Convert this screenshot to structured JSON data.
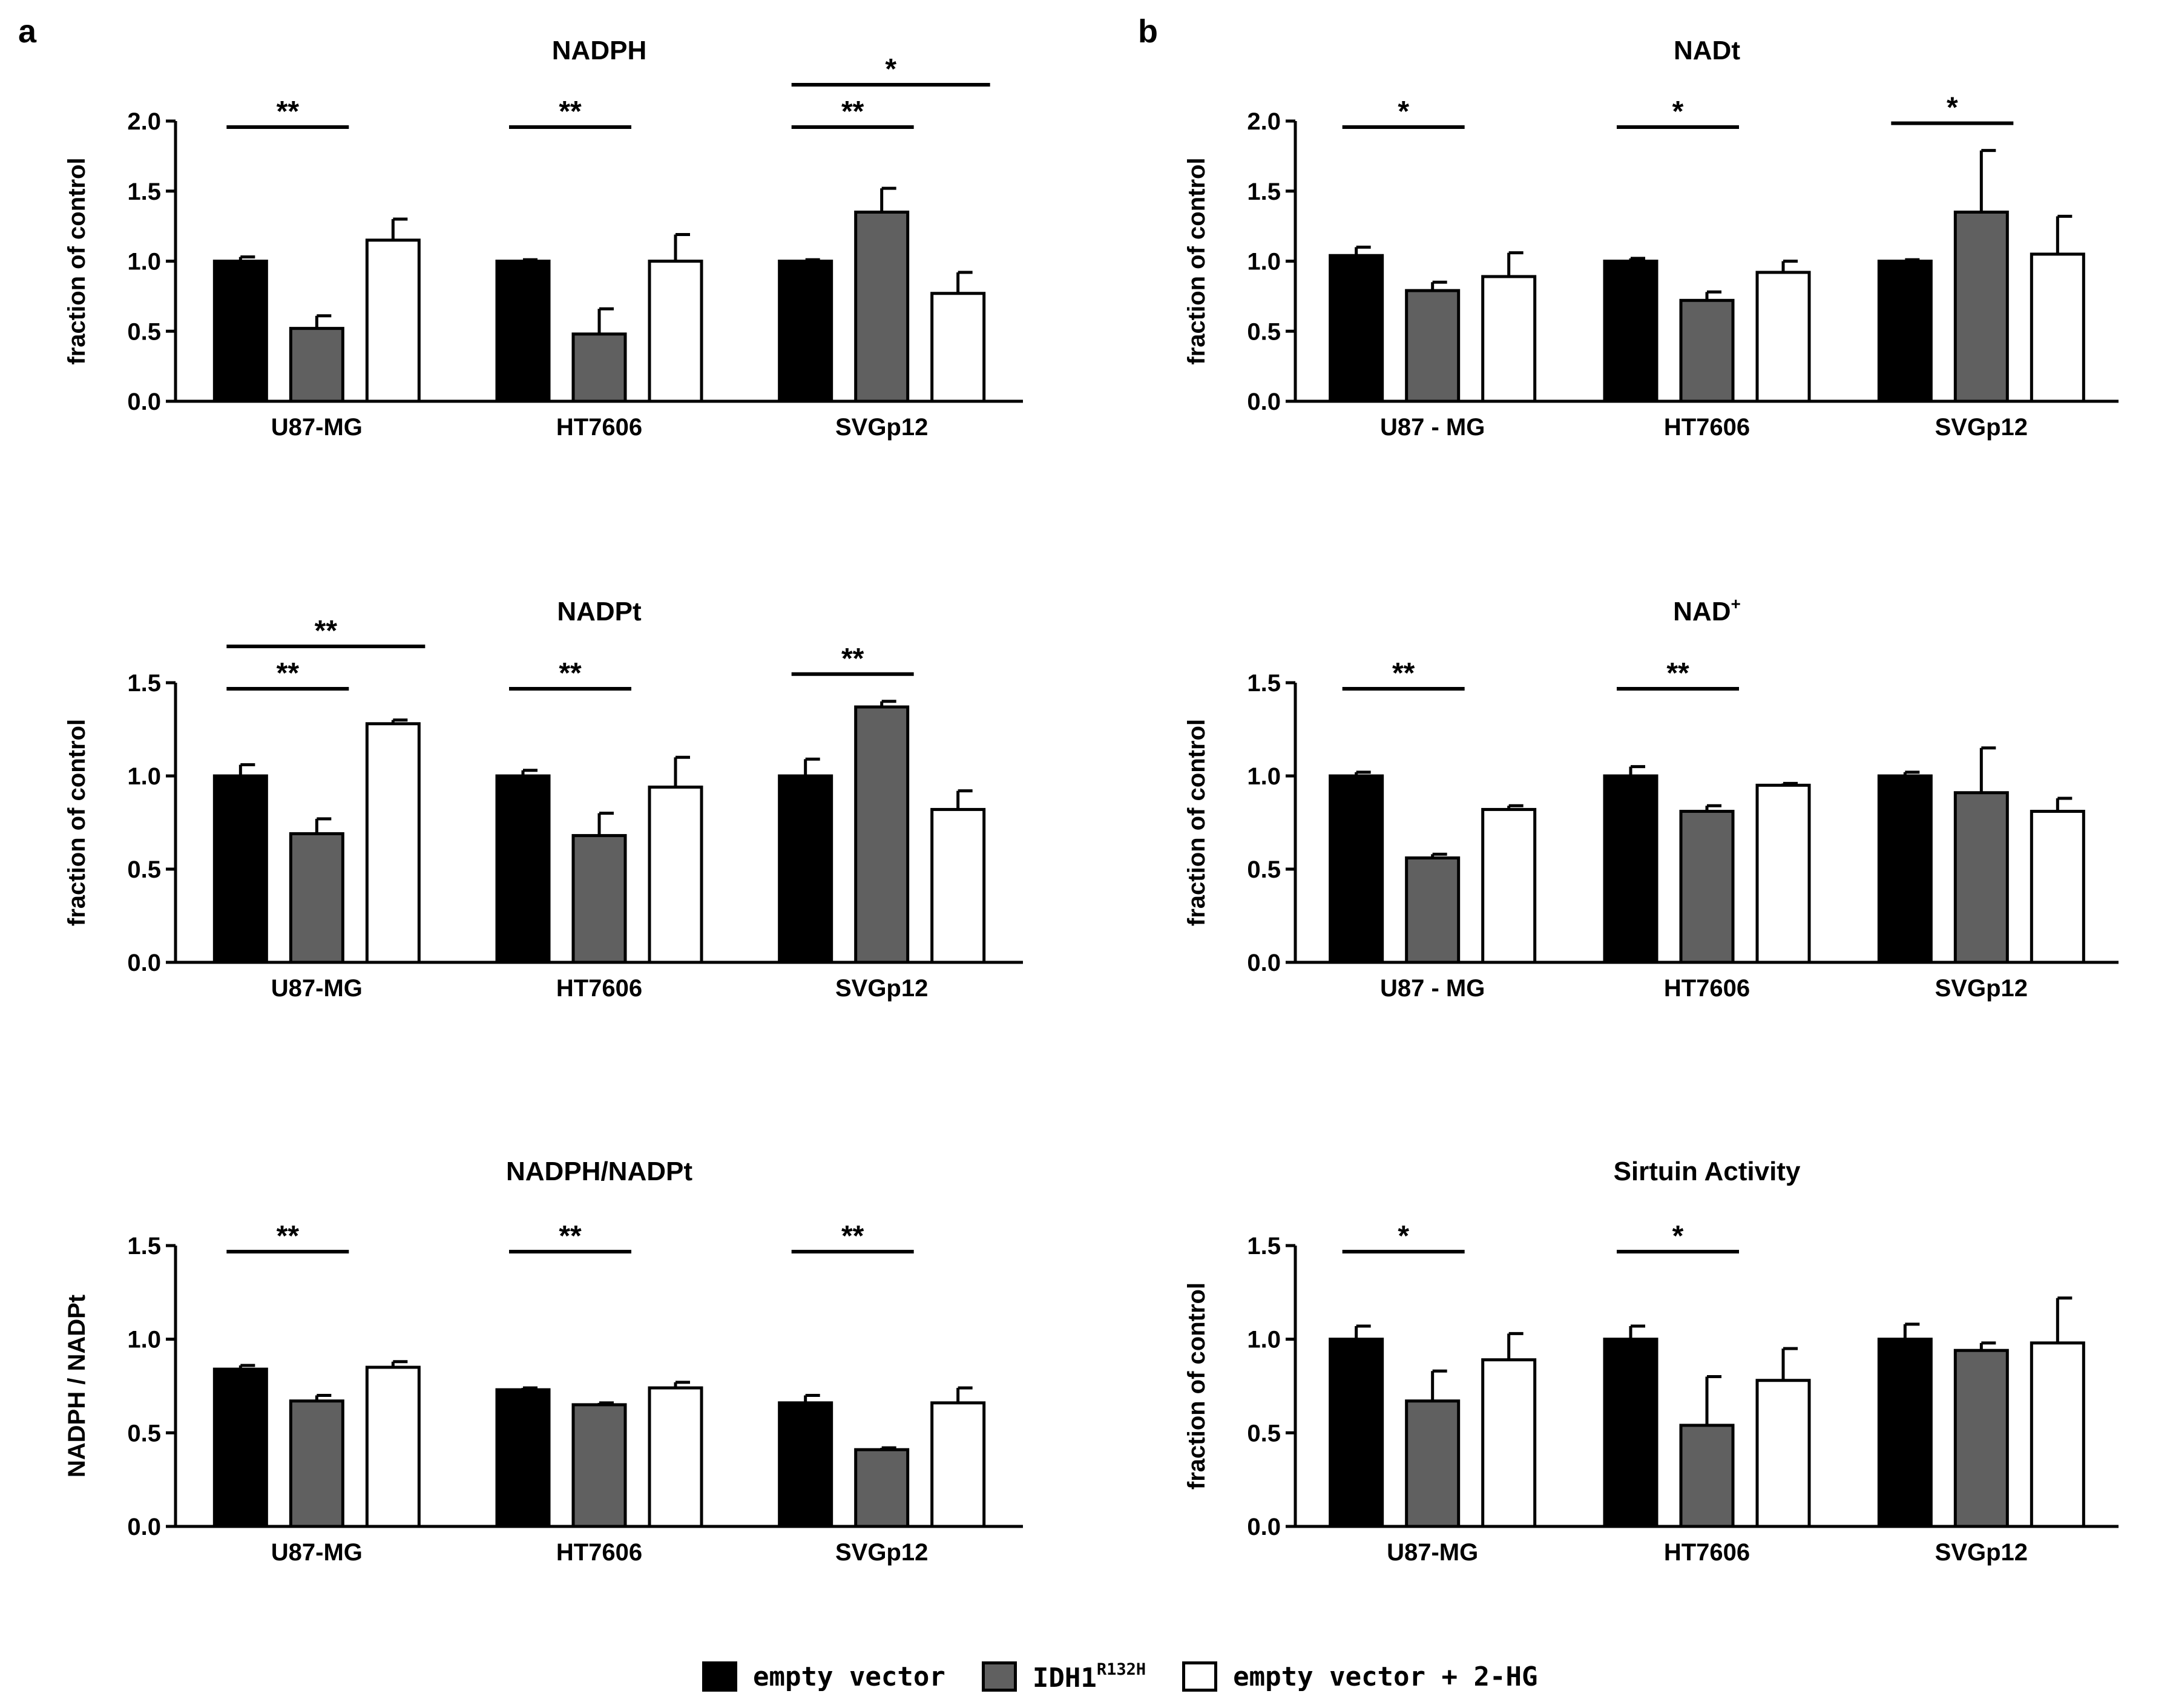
{
  "panel_labels": [
    "a",
    "b"
  ],
  "legend": {
    "items": [
      {
        "label": "empty vector",
        "color": "#000000"
      },
      {
        "label": "IDH1",
        "sup": "R132H",
        "color": "#606060"
      },
      {
        "label": "empty vector + 2-HG",
        "color": "#ffffff"
      }
    ]
  },
  "chart_data": [
    {
      "type": "bar",
      "title": "NADPH",
      "ylabel": "fraction of control",
      "ylim": [
        0,
        2.0
      ],
      "yticks": [
        "0.0",
        "0.5",
        "1.0",
        "1.5",
        "2.0"
      ],
      "categories": [
        "U87-MG",
        "HT7606",
        "SVGp12"
      ],
      "series": [
        {
          "name": "empty vector",
          "values": [
            1.0,
            1.0,
            1.0
          ],
          "errors": [
            0.03,
            0.01,
            0.01
          ]
        },
        {
          "name": "IDH1 R132H",
          "values": [
            0.52,
            0.48,
            1.35
          ],
          "errors": [
            0.09,
            0.18,
            0.17
          ]
        },
        {
          "name": "empty vector + 2-HG",
          "values": [
            1.15,
            1.0,
            0.77
          ],
          "errors": [
            0.15,
            0.19,
            0.15
          ]
        }
      ],
      "significance": [
        {
          "category": 0,
          "from": 0,
          "to": 1,
          "level": 0,
          "label": "**"
        },
        {
          "category": 1,
          "from": 0,
          "to": 1,
          "level": 0,
          "label": "**"
        },
        {
          "category": 2,
          "from": 0,
          "to": 1,
          "level": 0,
          "label": "**"
        },
        {
          "category": 2,
          "from": 0,
          "to": 2,
          "level": 1,
          "label": "*"
        }
      ]
    },
    {
      "type": "bar",
      "title": "NADt",
      "ylabel": "fraction of control",
      "ylim": [
        0,
        2.0
      ],
      "yticks": [
        "0.0",
        "0.5",
        "1.0",
        "1.5",
        "2.0"
      ],
      "categories": [
        "U87 - MG",
        "HT7606",
        "SVGp12"
      ],
      "series": [
        {
          "name": "empty vector",
          "values": [
            1.04,
            1.0,
            1.0
          ],
          "errors": [
            0.06,
            0.02,
            0.01
          ]
        },
        {
          "name": "IDH1 R132H",
          "values": [
            0.79,
            0.72,
            1.35
          ],
          "errors": [
            0.06,
            0.06,
            0.44
          ]
        },
        {
          "name": "empty vector + 2-HG",
          "values": [
            0.89,
            0.92,
            1.05
          ],
          "errors": [
            0.17,
            0.08,
            0.27
          ]
        }
      ],
      "significance": [
        {
          "category": 0,
          "from": 0,
          "to": 1,
          "level": 0,
          "label": "*"
        },
        {
          "category": 1,
          "from": 0,
          "to": 1,
          "level": 0,
          "label": "*"
        },
        {
          "category": 2,
          "from": 0,
          "to": 1,
          "level": 0,
          "label": "*"
        }
      ]
    },
    {
      "type": "bar",
      "title": "NADPt",
      "ylabel": "fraction of control",
      "ylim": [
        0,
        1.5
      ],
      "yticks": [
        "0.0",
        "0.5",
        "1.0",
        "1.5"
      ],
      "categories": [
        "U87-MG",
        "HT7606",
        "SVGp12"
      ],
      "series": [
        {
          "name": "empty vector",
          "values": [
            1.0,
            1.0,
            1.0
          ],
          "errors": [
            0.06,
            0.03,
            0.09
          ]
        },
        {
          "name": "IDH1 R132H",
          "values": [
            0.69,
            0.68,
            1.37
          ],
          "errors": [
            0.08,
            0.12,
            0.03
          ]
        },
        {
          "name": "empty vector + 2-HG",
          "values": [
            1.28,
            0.94,
            0.82
          ],
          "errors": [
            0.02,
            0.16,
            0.1
          ]
        }
      ],
      "significance": [
        {
          "category": 0,
          "from": 0,
          "to": 1,
          "level": 0,
          "label": "**"
        },
        {
          "category": 0,
          "from": 0,
          "to": 2,
          "level": 1,
          "label": "**"
        },
        {
          "category": 1,
          "from": 0,
          "to": 1,
          "level": 0,
          "label": "**"
        },
        {
          "category": 2,
          "from": 0,
          "to": 1,
          "level": 0,
          "label": "**"
        }
      ]
    },
    {
      "type": "bar",
      "title": "NAD",
      "title_sup": "+",
      "ylabel": "fraction of control",
      "ylim": [
        0,
        1.5
      ],
      "yticks": [
        "0.0",
        "0.5",
        "1.0",
        "1.5"
      ],
      "categories": [
        "U87 - MG",
        "HT7606",
        "SVGp12"
      ],
      "series": [
        {
          "name": "empty vector",
          "values": [
            1.0,
            1.0,
            1.0
          ],
          "errors": [
            0.02,
            0.05,
            0.02
          ]
        },
        {
          "name": "IDH1 R132H",
          "values": [
            0.56,
            0.81,
            0.91
          ],
          "errors": [
            0.02,
            0.03,
            0.24
          ]
        },
        {
          "name": "empty vector + 2-HG",
          "values": [
            0.82,
            0.95,
            0.81
          ],
          "errors": [
            0.02,
            0.01,
            0.07
          ]
        }
      ],
      "significance": [
        {
          "category": 0,
          "from": 0,
          "to": 1,
          "level": 0,
          "label": "**"
        },
        {
          "category": 1,
          "from": 0,
          "to": 1,
          "level": 0,
          "label": "**"
        }
      ]
    },
    {
      "type": "bar",
      "title": "NADPH/NADPt",
      "ylabel": "NADPH / NADPt",
      "ylim": [
        0,
        1.5
      ],
      "yticks": [
        "0.0",
        "0.5",
        "1.0",
        "1.5"
      ],
      "categories": [
        "U87-MG",
        "HT7606",
        "SVGp12"
      ],
      "series": [
        {
          "name": "empty vector",
          "values": [
            0.84,
            0.73,
            0.66
          ],
          "errors": [
            0.02,
            0.01,
            0.04
          ]
        },
        {
          "name": "IDH1 R132H",
          "values": [
            0.67,
            0.65,
            0.41
          ],
          "errors": [
            0.03,
            0.01,
            0.01
          ]
        },
        {
          "name": "empty vector + 2-HG",
          "values": [
            0.85,
            0.74,
            0.66
          ],
          "errors": [
            0.03,
            0.03,
            0.08
          ]
        }
      ],
      "significance": [
        {
          "category": 0,
          "from": 0,
          "to": 1,
          "level": 0,
          "label": "**"
        },
        {
          "category": 1,
          "from": 0,
          "to": 1,
          "level": 0,
          "label": "**"
        },
        {
          "category": 2,
          "from": 0,
          "to": 1,
          "level": 0,
          "label": "**"
        }
      ]
    },
    {
      "type": "bar",
      "title": "Sirtuin Activity",
      "ylabel": "fraction of control",
      "ylim": [
        0,
        1.5
      ],
      "yticks": [
        "0.0",
        "0.5",
        "1.0",
        "1.5"
      ],
      "categories": [
        "U87-MG",
        "HT7606",
        "SVGp12"
      ],
      "series": [
        {
          "name": "empty vector",
          "values": [
            1.0,
            1.0,
            1.0
          ],
          "errors": [
            0.07,
            0.07,
            0.08
          ]
        },
        {
          "name": "IDH1 R132H",
          "values": [
            0.67,
            0.54,
            0.94
          ],
          "errors": [
            0.16,
            0.26,
            0.04
          ]
        },
        {
          "name": "empty vector + 2-HG",
          "values": [
            0.89,
            0.78,
            0.98
          ],
          "errors": [
            0.14,
            0.17,
            0.24
          ]
        }
      ],
      "significance": [
        {
          "category": 0,
          "from": 0,
          "to": 1,
          "level": 0,
          "label": "*"
        },
        {
          "category": 1,
          "from": 0,
          "to": 1,
          "level": 0,
          "label": "*"
        }
      ]
    }
  ]
}
